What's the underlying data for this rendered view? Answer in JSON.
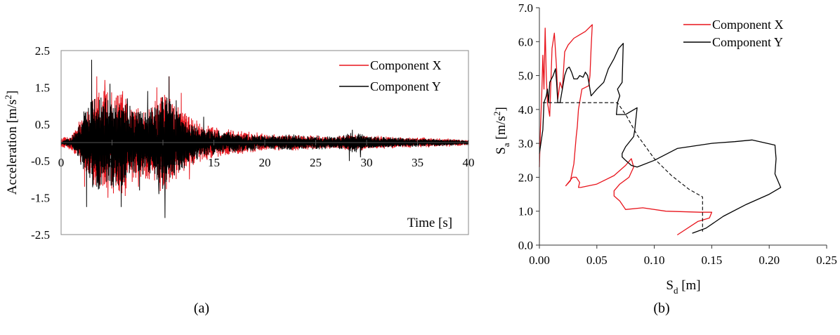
{
  "colors": {
    "x": "#e8141c",
    "y": "#000000",
    "capacity": "#000000"
  },
  "chart_data": [
    {
      "type": "line",
      "caption": "(a)",
      "xlabel": "Time [s]",
      "ylabel_main": "Acceleration [m/s",
      "ylabel_sup": "2",
      "ylabel_end": "]",
      "xlim": [
        0,
        40
      ],
      "ylim": [
        -2.5,
        2.5
      ],
      "xticks": [
        "0",
        "5",
        "10",
        "15",
        "20",
        "25",
        "30",
        "35",
        "40"
      ],
      "xtick_values": [
        0,
        5,
        10,
        15,
        20,
        25,
        30,
        35,
        40
      ],
      "yticks": [
        "2.5",
        "1.5",
        "0.5",
        "-0.5",
        "-1.5",
        "-2.5"
      ],
      "ytick_values": [
        2.5,
        1.5,
        0.5,
        -0.5,
        -1.5,
        -2.5
      ],
      "grid": false,
      "legend_position": "top-right",
      "series": [
        {
          "name": "Component X",
          "color_key": "x",
          "envelope": [
            [
              0,
              0.1
            ],
            [
              1,
              0.2
            ],
            [
              2,
              0.6
            ],
            [
              3,
              1.0
            ],
            [
              4,
              1.4
            ],
            [
              5,
              1.3
            ],
            [
              6,
              1.3
            ],
            [
              7,
              1.0
            ],
            [
              8,
              0.9
            ],
            [
              9,
              1.0
            ],
            [
              10,
              1.4
            ],
            [
              11,
              1.0
            ],
            [
              12,
              0.8
            ],
            [
              13,
              0.6
            ],
            [
              14,
              0.45
            ],
            [
              16,
              0.35
            ],
            [
              18,
              0.28
            ],
            [
              20,
              0.22
            ],
            [
              22,
              0.2
            ],
            [
              25,
              0.18
            ],
            [
              27,
              0.15
            ],
            [
              28,
              0.2
            ],
            [
              29,
              0.22
            ],
            [
              30,
              0.18
            ],
            [
              33,
              0.14
            ],
            [
              36,
              0.12
            ],
            [
              40,
              0.08
            ]
          ],
          "peaks": [
            [
              2.3,
              -1.2
            ],
            [
              3.5,
              1.8
            ],
            [
              4.3,
              1.7
            ],
            [
              4.6,
              -1.5
            ],
            [
              5.8,
              1.3
            ],
            [
              6.3,
              -1.45
            ],
            [
              7.6,
              -1.2
            ],
            [
              9.4,
              1.5
            ],
            [
              10.6,
              1.8
            ],
            [
              11.8,
              1.35
            ],
            [
              12.6,
              -1.0
            ]
          ]
        },
        {
          "name": "Component Y",
          "color_key": "y",
          "envelope": [
            [
              0,
              0.05
            ],
            [
              1,
              0.15
            ],
            [
              2,
              0.6
            ],
            [
              2.5,
              1.0
            ],
            [
              3,
              1.3
            ],
            [
              4,
              1.2
            ],
            [
              5,
              1.1
            ],
            [
              6,
              1.1
            ],
            [
              7,
              0.9
            ],
            [
              8,
              0.8
            ],
            [
              9,
              0.9
            ],
            [
              10,
              1.3
            ],
            [
              11,
              1.0
            ],
            [
              12,
              0.7
            ],
            [
              13,
              0.5
            ],
            [
              14,
              0.35
            ],
            [
              16,
              0.28
            ],
            [
              18,
              0.22
            ],
            [
              20,
              0.18
            ],
            [
              22,
              0.2
            ],
            [
              25,
              0.18
            ],
            [
              27,
              0.15
            ],
            [
              28,
              0.2
            ],
            [
              28.6,
              0.3
            ],
            [
              29,
              0.25
            ],
            [
              30,
              0.17
            ],
            [
              33,
              0.12
            ],
            [
              36,
              0.1
            ],
            [
              40,
              0.06
            ]
          ],
          "peaks": [
            [
              2.5,
              -1.75
            ],
            [
              3.0,
              2.25
            ],
            [
              3.5,
              -1.2
            ],
            [
              4.8,
              1.6
            ],
            [
              5.9,
              -1.75
            ],
            [
              6.5,
              1.2
            ],
            [
              7.7,
              -1.3
            ],
            [
              8.5,
              1.4
            ],
            [
              9.6,
              -1.4
            ],
            [
              10.2,
              -2.05
            ],
            [
              10.6,
              1.8
            ],
            [
              11.3,
              1.15
            ],
            [
              14.0,
              0.7
            ],
            [
              28.6,
              0.35
            ],
            [
              28.3,
              -0.5
            ],
            [
              29.4,
              -0.4
            ]
          ]
        }
      ]
    },
    {
      "type": "line",
      "caption": "(b)",
      "xlabel_main": "S",
      "xlabel_sub": "d",
      "xlabel_end": " [m]",
      "ylabel_main": "S",
      "ylabel_sub": "a",
      "ylabel_mid": " [m/s",
      "ylabel_sup": "2",
      "ylabel_end": "]",
      "xlim": [
        0,
        0.25
      ],
      "ylim": [
        0,
        7.0
      ],
      "xticks": [
        "0.00",
        "0.05",
        "0.10",
        "0.15",
        "0.20",
        "0.25"
      ],
      "xtick_values": [
        0,
        0.05,
        0.1,
        0.15,
        0.2,
        0.25
      ],
      "yticks": [
        "0.0",
        "1.0",
        "2.0",
        "3.0",
        "4.0",
        "5.0",
        "6.0",
        "7.0"
      ],
      "ytick_values": [
        0,
        1,
        2,
        3,
        4,
        5,
        6,
        7
      ],
      "grid": false,
      "legend_position": "top-right",
      "series": [
        {
          "name": "Component X",
          "color_key": "x",
          "points": [
            [
              0.0,
              2.3
            ],
            [
              0.001,
              3.5
            ],
            [
              0.002,
              4.4
            ],
            [
              0.003,
              5.6
            ],
            [
              0.004,
              4.6
            ],
            [
              0.005,
              6.4
            ],
            [
              0.006,
              5.0
            ],
            [
              0.007,
              4.2
            ],
            [
              0.009,
              3.8
            ],
            [
              0.011,
              5.8
            ],
            [
              0.013,
              6.25
            ],
            [
              0.015,
              5.2
            ],
            [
              0.016,
              4.3
            ],
            [
              0.018,
              4.8
            ],
            [
              0.02,
              4.6
            ],
            [
              0.022,
              5.7
            ],
            [
              0.025,
              5.9
            ],
            [
              0.03,
              6.1
            ],
            [
              0.035,
              6.2
            ],
            [
              0.04,
              6.3
            ],
            [
              0.046,
              6.5
            ],
            [
              0.045,
              5.8
            ],
            [
              0.044,
              5.0
            ],
            [
              0.043,
              4.7
            ],
            [
              0.037,
              4.6
            ],
            [
              0.034,
              4.0
            ],
            [
              0.033,
              3.5
            ],
            [
              0.032,
              3.2
            ],
            [
              0.03,
              2.4
            ],
            [
              0.027,
              1.9
            ],
            [
              0.023,
              1.75
            ],
            [
              0.029,
              2.0
            ],
            [
              0.032,
              2.0
            ],
            [
              0.035,
              1.85
            ],
            [
              0.034,
              1.7
            ],
            [
              0.036,
              1.7
            ],
            [
              0.05,
              1.8
            ],
            [
              0.065,
              2.05
            ],
            [
              0.075,
              2.35
            ],
            [
              0.08,
              2.55
            ],
            [
              0.082,
              2.3
            ],
            [
              0.078,
              2.0
            ],
            [
              0.07,
              1.8
            ],
            [
              0.065,
              1.6
            ],
            [
              0.065,
              1.45
            ],
            [
              0.07,
              1.3
            ],
            [
              0.075,
              1.05
            ],
            [
              0.09,
              1.1
            ],
            [
              0.11,
              1.0
            ],
            [
              0.14,
              0.97
            ],
            [
              0.15,
              0.97
            ],
            [
              0.148,
              0.8
            ],
            [
              0.138,
              0.7
            ],
            [
              0.12,
              0.3
            ]
          ]
        },
        {
          "name": "Component Y",
          "color_key": "y",
          "points": [
            [
              0.0,
              2.7
            ],
            [
              0.003,
              3.4
            ],
            [
              0.004,
              4.2
            ],
            [
              0.006,
              4.4
            ],
            [
              0.007,
              4.6
            ],
            [
              0.008,
              4.2
            ],
            [
              0.009,
              4.8
            ],
            [
              0.012,
              5.0
            ],
            [
              0.014,
              5.2
            ],
            [
              0.015,
              4.8
            ],
            [
              0.016,
              4.2
            ],
            [
              0.018,
              4.2
            ],
            [
              0.02,
              4.6
            ],
            [
              0.022,
              5.0
            ],
            [
              0.024,
              5.2
            ],
            [
              0.026,
              5.25
            ],
            [
              0.028,
              5.1
            ],
            [
              0.03,
              4.9
            ],
            [
              0.033,
              4.9
            ],
            [
              0.035,
              5.0
            ],
            [
              0.038,
              4.95
            ],
            [
              0.04,
              5.1
            ],
            [
              0.042,
              5.0
            ],
            [
              0.045,
              4.4
            ],
            [
              0.05,
              4.6
            ],
            [
              0.056,
              4.8
            ],
            [
              0.06,
              5.2
            ],
            [
              0.065,
              5.5
            ],
            [
              0.069,
              5.8
            ],
            [
              0.073,
              5.95
            ],
            [
              0.072,
              4.8
            ],
            [
              0.068,
              4.6
            ],
            [
              0.07,
              4.4
            ],
            [
              0.068,
              4.2
            ],
            [
              0.067,
              3.85
            ],
            [
              0.075,
              3.85
            ],
            [
              0.085,
              4.05
            ],
            [
              0.083,
              3.4
            ],
            [
              0.082,
              3.2
            ],
            [
              0.075,
              2.9
            ],
            [
              0.072,
              2.7
            ],
            [
              0.072,
              2.6
            ],
            [
              0.075,
              2.5
            ],
            [
              0.08,
              2.35
            ],
            [
              0.085,
              2.3
            ],
            [
              0.1,
              2.5
            ],
            [
              0.12,
              2.85
            ],
            [
              0.15,
              3.0
            ],
            [
              0.17,
              3.05
            ],
            [
              0.185,
              3.1
            ],
            [
              0.205,
              2.95
            ],
            [
              0.206,
              2.55
            ],
            [
              0.205,
              2.1
            ],
            [
              0.21,
              1.7
            ],
            [
              0.2,
              1.5
            ],
            [
              0.18,
              1.2
            ],
            [
              0.16,
              0.85
            ],
            [
              0.145,
              0.5
            ],
            [
              0.133,
              0.35
            ]
          ]
        },
        {
          "name": "capacity",
          "color_key": "capacity",
          "dashed": true,
          "points": [
            [
              0.003,
              4.2
            ],
            [
              0.068,
              4.2
            ],
            [
              0.076,
              3.8
            ],
            [
              0.085,
              3.25
            ],
            [
              0.1,
              2.55
            ],
            [
              0.115,
              2.05
            ],
            [
              0.13,
              1.65
            ],
            [
              0.142,
              1.42
            ],
            [
              0.142,
              0.8
            ],
            [
              0.142,
              0.4
            ]
          ]
        }
      ]
    }
  ]
}
